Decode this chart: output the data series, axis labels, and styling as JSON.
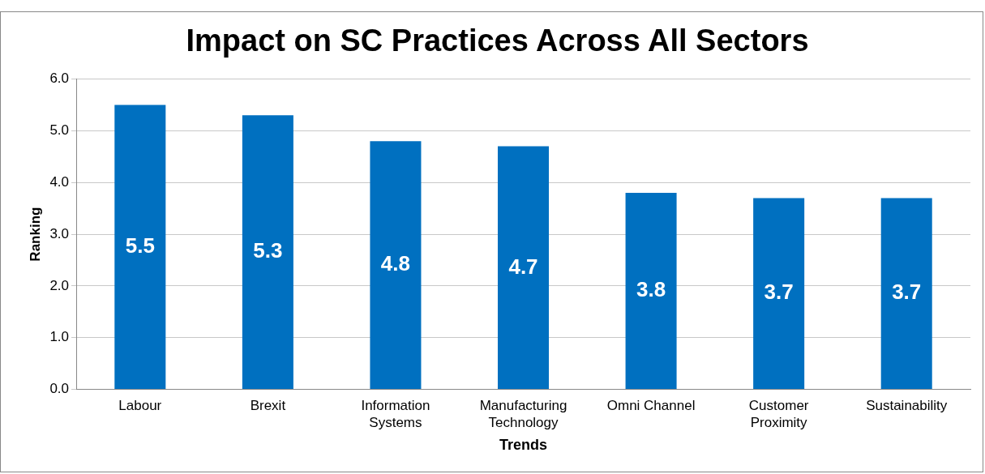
{
  "chart_data": {
    "type": "bar",
    "title": "Impact on SC Practices Across All Sectors",
    "xlabel": "Trends",
    "ylabel": "Ranking",
    "categories": [
      "Labour",
      "Brexit",
      "Information Systems",
      "Manufacturing Technology",
      "Omni Channel",
      "Customer Proximity",
      "Sustainability"
    ],
    "values": [
      5.5,
      5.3,
      4.8,
      4.7,
      3.8,
      3.7,
      3.7
    ],
    "color": "#0070c0",
    "ylim": [
      0,
      6
    ],
    "yticks": [
      {
        "value": 0,
        "label": "0.0"
      },
      {
        "value": 1,
        "label": "1.0"
      },
      {
        "value": 2,
        "label": "2.0"
      },
      {
        "value": 3,
        "label": "3.0"
      },
      {
        "value": 4,
        "label": "4.0"
      },
      {
        "value": 5,
        "label": "5.0"
      },
      {
        "value": 6,
        "label": "6.0"
      }
    ],
    "grid": "y",
    "data_labels": true,
    "legend": false
  }
}
